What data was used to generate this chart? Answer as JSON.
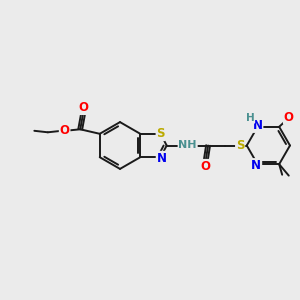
{
  "bg_color": "#ebebeb",
  "bond_color": "#1a1a1a",
  "atom_colors": {
    "N": "#0000ee",
    "O": "#ff0000",
    "S": "#bbaa00",
    "H": "#4a9090",
    "C": "#1a1a1a"
  },
  "bond_lw": 1.4,
  "font_size_atom": 8.5,
  "font_size_small": 7.0
}
